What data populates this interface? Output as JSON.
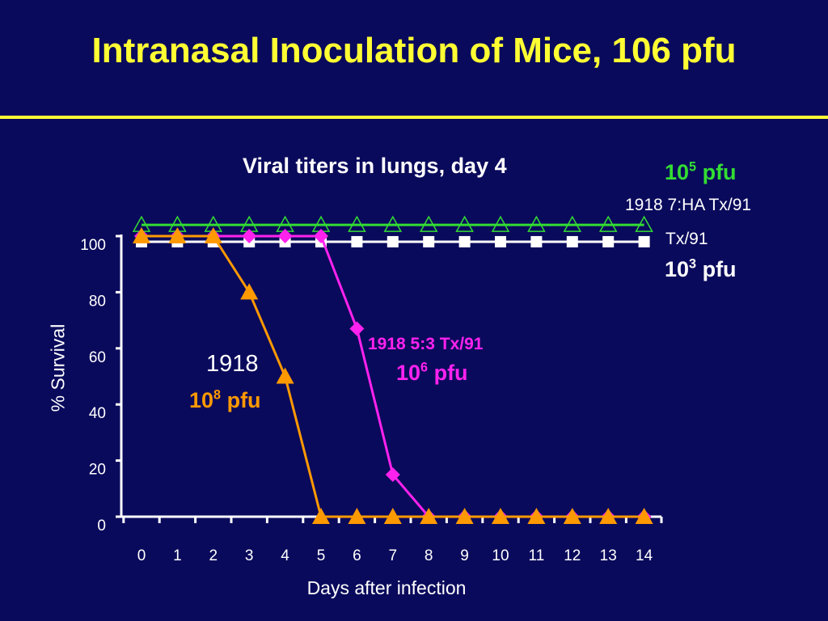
{
  "slide": {
    "title": "Intranasal Inoculation of Mice, 106 pfu",
    "title_color": "#ffff33",
    "background": "#0a0a5c"
  },
  "chart_data": {
    "type": "line",
    "title": "Viral titers in lungs, day 4",
    "xlabel": "Days after infection",
    "ylabel": "% Survival",
    "xlim": [
      0,
      14
    ],
    "ylim": [
      0,
      100
    ],
    "x_ticks": [
      0,
      1,
      2,
      3,
      4,
      5,
      6,
      7,
      8,
      9,
      10,
      11,
      12,
      13,
      14
    ],
    "y_ticks": [
      0,
      20,
      40,
      60,
      80,
      100
    ],
    "grid": false,
    "series": [
      {
        "key": "green",
        "name": "1918 7:HA Tx/91",
        "dose_base": "10",
        "dose_exp": "5",
        "dose_unit": "pfu",
        "color": "#33dd33",
        "marker": "open-triangle",
        "x": [
          0,
          1,
          2,
          3,
          4,
          5,
          6,
          7,
          8,
          9,
          10,
          11,
          12,
          13,
          14
        ],
        "values": [
          104,
          104,
          104,
          104,
          104,
          104,
          104,
          104,
          104,
          104,
          104,
          104,
          104,
          104,
          104
        ]
      },
      {
        "key": "white",
        "name": "Tx/91",
        "dose_base": "10",
        "dose_exp": "3",
        "dose_unit": "pfu",
        "color": "#ffffff",
        "marker": "square",
        "x": [
          0,
          1,
          2,
          3,
          4,
          5,
          6,
          7,
          8,
          9,
          10,
          11,
          12,
          13,
          14
        ],
        "values": [
          98,
          98,
          98,
          98,
          98,
          98,
          98,
          98,
          98,
          98,
          98,
          98,
          98,
          98,
          98
        ]
      },
      {
        "key": "magenta",
        "name": "1918 5:3 Tx/91",
        "dose_base": "10",
        "dose_exp": "6",
        "dose_unit": "pfu",
        "color": "#ff22ee",
        "marker": "diamond",
        "x": [
          0,
          1,
          2,
          3,
          4,
          5,
          6,
          7,
          8,
          9,
          10,
          11,
          12,
          13,
          14
        ],
        "values": [
          100,
          100,
          100,
          100,
          100,
          100,
          67,
          15,
          0,
          0,
          0,
          0,
          0,
          0,
          0
        ]
      },
      {
        "key": "orange",
        "name": "1918",
        "dose_base": "10",
        "dose_exp": "8",
        "dose_unit": "pfu",
        "color": "#ff9900",
        "marker": "triangle",
        "x": [
          0,
          1,
          2,
          3,
          4,
          5,
          6,
          7,
          8,
          9,
          10,
          11,
          12,
          13,
          14
        ],
        "values": [
          100,
          100,
          100,
          80,
          50,
          0,
          0,
          0,
          0,
          0,
          0,
          0,
          0,
          0,
          0
        ]
      }
    ]
  }
}
